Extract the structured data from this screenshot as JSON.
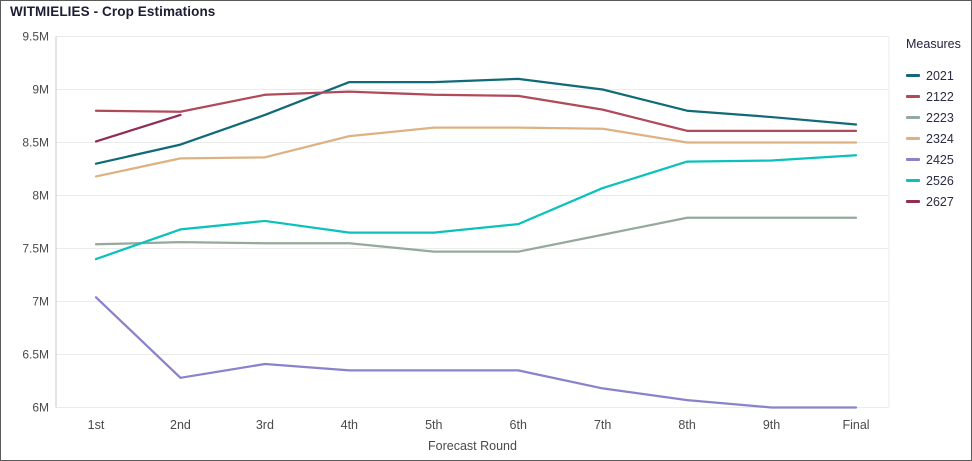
{
  "window": {
    "title": "WITMIELIES - Crop Estimations"
  },
  "legend": {
    "title": "Measures"
  },
  "axes": {
    "x_title": "Forecast Round",
    "y_tick_labels": [
      "9.5M",
      "9M",
      "8.5M",
      "8M",
      "7.5M",
      "7M",
      "6.5M",
      "6M"
    ],
    "x_tick_labels": [
      "1st",
      "2nd",
      "3rd",
      "4th",
      "5th",
      "6th",
      "7th",
      "8th",
      "9th",
      "Final"
    ]
  },
  "chart_data": {
    "type": "line",
    "title": "WITMIELIES - Crop Estimations",
    "xlabel": "Forecast Round",
    "ylabel": "",
    "unit": "M",
    "categories": [
      "1st",
      "2nd",
      "3rd",
      "4th",
      "5th",
      "6th",
      "7th",
      "8th",
      "9th",
      "Final"
    ],
    "ylim": [
      6.0,
      9.5
    ],
    "y_tick_step": 0.5,
    "grid": true,
    "legend_position": "right",
    "legend_title": "Measures",
    "series": [
      {
        "name": "2021",
        "color": "#116a78",
        "values": [
          8.3,
          8.48,
          8.76,
          9.07,
          9.07,
          9.1,
          9.0,
          8.8,
          8.74,
          8.67
        ]
      },
      {
        "name": "2122",
        "color": "#b04a5a",
        "values": [
          8.8,
          8.79,
          8.95,
          8.98,
          8.95,
          8.94,
          8.81,
          8.61,
          8.61,
          8.61
        ]
      },
      {
        "name": "2223",
        "color": "#95a99c",
        "values": [
          7.54,
          7.56,
          7.55,
          7.55,
          7.47,
          7.47,
          7.63,
          7.79,
          7.79,
          7.79
        ]
      },
      {
        "name": "2324",
        "color": "#ddb283",
        "values": [
          8.18,
          8.35,
          8.36,
          8.56,
          8.64,
          8.64,
          8.63,
          8.5,
          8.5,
          8.5
        ]
      },
      {
        "name": "2425",
        "color": "#8883cb",
        "values": [
          7.04,
          6.28,
          6.41,
          6.35,
          6.35,
          6.35,
          6.18,
          6.07,
          6.0,
          6.0
        ]
      },
      {
        "name": "2526",
        "color": "#0bc1bb",
        "values": [
          7.4,
          7.68,
          7.76,
          7.65,
          7.65,
          7.73,
          8.07,
          8.32,
          8.33,
          8.38
        ]
      },
      {
        "name": "2627",
        "color": "#8e2f58",
        "values": [
          8.51,
          8.76,
          null,
          null,
          null,
          null,
          null,
          null,
          null,
          null
        ]
      }
    ],
    "style": {
      "grid_color": "#ebebeb",
      "axis_line_color": "#c9c9c9",
      "tick_label_color": "#4a4a4a",
      "title_color": "#1c1c33"
    }
  }
}
